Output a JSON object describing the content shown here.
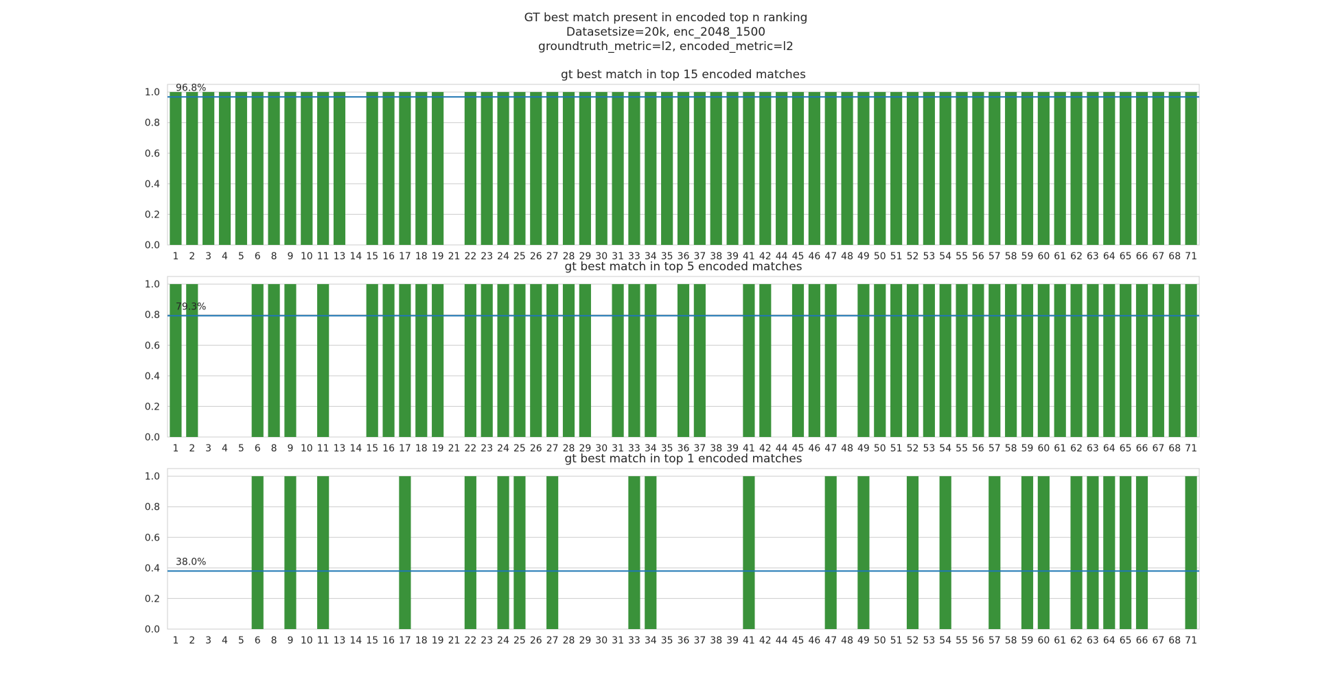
{
  "suptitle": {
    "line1": "GT best match present in encoded top n ranking",
    "line2": "Datasetsize=20k, enc_2048_1500",
    "line3": "groundtruth_metric=l2, encoded_metric=l2"
  },
  "colors": {
    "bar": "#3a923a",
    "mean_line": "#1f77b4",
    "grid": "#cccccc",
    "frame": "#cccccc"
  },
  "chart_data": [
    {
      "type": "bar",
      "title": "gt best match in top 15 encoded matches",
      "categories": [
        "1",
        "2",
        "3",
        "4",
        "5",
        "6",
        "8",
        "9",
        "10",
        "11",
        "13",
        "14",
        "15",
        "16",
        "17",
        "18",
        "19",
        "21",
        "22",
        "23",
        "24",
        "25",
        "26",
        "27",
        "28",
        "29",
        "30",
        "31",
        "33",
        "34",
        "35",
        "36",
        "37",
        "38",
        "39",
        "41",
        "42",
        "44",
        "45",
        "46",
        "47",
        "48",
        "49",
        "50",
        "51",
        "52",
        "53",
        "54",
        "55",
        "56",
        "57",
        "58",
        "59",
        "60",
        "61",
        "62",
        "63",
        "64",
        "65",
        "66",
        "67",
        "68",
        "71"
      ],
      "values": [
        1,
        1,
        1,
        1,
        1,
        1,
        1,
        1,
        1,
        1,
        1,
        0,
        1,
        1,
        1,
        1,
        1,
        0,
        1,
        1,
        1,
        1,
        1,
        1,
        1,
        1,
        1,
        1,
        1,
        1,
        1,
        1,
        1,
        1,
        1,
        1,
        1,
        1,
        1,
        1,
        1,
        1,
        1,
        1,
        1,
        1,
        1,
        1,
        1,
        1,
        1,
        1,
        1,
        1,
        1,
        1,
        1,
        1,
        1,
        1,
        1,
        1,
        1
      ],
      "mean": 0.968,
      "mean_label": "96.8%",
      "ylim": [
        0,
        1.05
      ],
      "yticks": [
        "0.0",
        "0.2",
        "0.4",
        "0.6",
        "0.8",
        "1.0"
      ],
      "grid": true
    },
    {
      "type": "bar",
      "title": "gt best match in top 5 encoded matches",
      "categories": [
        "1",
        "2",
        "3",
        "4",
        "5",
        "6",
        "8",
        "9",
        "10",
        "11",
        "13",
        "14",
        "15",
        "16",
        "17",
        "18",
        "19",
        "21",
        "22",
        "23",
        "24",
        "25",
        "26",
        "27",
        "28",
        "29",
        "30",
        "31",
        "33",
        "34",
        "35",
        "36",
        "37",
        "38",
        "39",
        "41",
        "42",
        "44",
        "45",
        "46",
        "47",
        "48",
        "49",
        "50",
        "51",
        "52",
        "53",
        "54",
        "55",
        "56",
        "57",
        "58",
        "59",
        "60",
        "61",
        "62",
        "63",
        "64",
        "65",
        "66",
        "67",
        "68",
        "71"
      ],
      "values": [
        1,
        1,
        0,
        0,
        0,
        1,
        1,
        1,
        0,
        1,
        0,
        0,
        1,
        1,
        1,
        1,
        1,
        0,
        1,
        1,
        1,
        1,
        1,
        1,
        1,
        1,
        0,
        1,
        1,
        1,
        0,
        1,
        1,
        0,
        0,
        1,
        1,
        0,
        1,
        1,
        1,
        0,
        1,
        1,
        1,
        1,
        1,
        1,
        1,
        1,
        1,
        1,
        1,
        1,
        1,
        1,
        1,
        1,
        1,
        1,
        1,
        1,
        1
      ],
      "mean": 0.793,
      "mean_label": "79.3%",
      "ylim": [
        0,
        1.05
      ],
      "yticks": [
        "0.0",
        "0.2",
        "0.4",
        "0.6",
        "0.8",
        "1.0"
      ],
      "grid": true
    },
    {
      "type": "bar",
      "title": "gt best match in top 1 encoded matches",
      "categories": [
        "1",
        "2",
        "3",
        "4",
        "5",
        "6",
        "8",
        "9",
        "10",
        "11",
        "13",
        "14",
        "15",
        "16",
        "17",
        "18",
        "19",
        "21",
        "22",
        "23",
        "24",
        "25",
        "26",
        "27",
        "28",
        "29",
        "30",
        "31",
        "33",
        "34",
        "35",
        "36",
        "37",
        "38",
        "39",
        "41",
        "42",
        "44",
        "45",
        "46",
        "47",
        "48",
        "49",
        "50",
        "51",
        "52",
        "53",
        "54",
        "55",
        "56",
        "57",
        "58",
        "59",
        "60",
        "61",
        "62",
        "63",
        "64",
        "65",
        "66",
        "67",
        "68",
        "71"
      ],
      "values": [
        0,
        0,
        0,
        0,
        0,
        1,
        0,
        1,
        0,
        1,
        0,
        0,
        0,
        0,
        1,
        0,
        0,
        0,
        1,
        0,
        1,
        1,
        0,
        1,
        0,
        0,
        0,
        0,
        1,
        1,
        0,
        0,
        0,
        0,
        0,
        1,
        0,
        0,
        0,
        0,
        1,
        0,
        1,
        0,
        0,
        1,
        0,
        1,
        0,
        0,
        1,
        0,
        1,
        1,
        0,
        1,
        1,
        1,
        1,
        1,
        0,
        0,
        1
      ],
      "mean": 0.38,
      "mean_label": "38.0%",
      "ylim": [
        0,
        1.05
      ],
      "yticks": [
        "0.0",
        "0.2",
        "0.4",
        "0.6",
        "0.8",
        "1.0"
      ],
      "grid": true
    }
  ]
}
